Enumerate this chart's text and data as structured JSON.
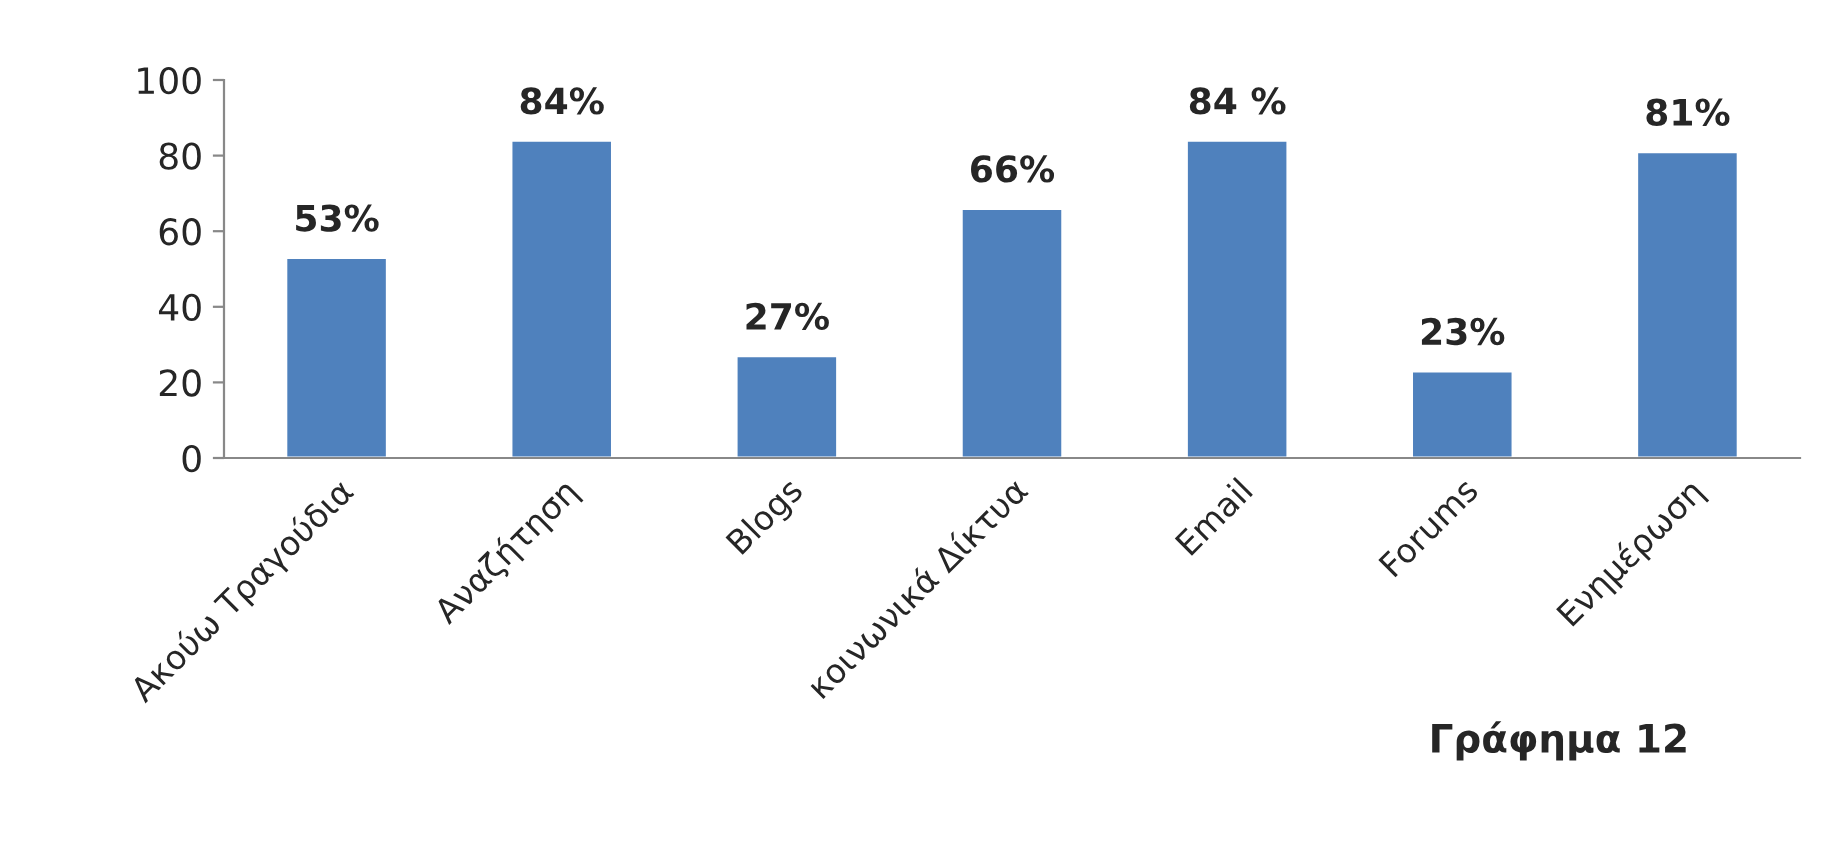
{
  "chart_data": {
    "type": "bar",
    "categories": [
      "Ακούω Τραγούδια",
      "Αναζήτηση",
      "Blogs",
      "κοινωνικά Δίκτυα",
      "Email",
      "Forums",
      "Ενημέρωση"
    ],
    "values": [
      53,
      84,
      27,
      66,
      84,
      23,
      81
    ],
    "value_labels": [
      "53%",
      "84%",
      "27%",
      "66%",
      "84 %",
      "23%",
      "81%"
    ],
    "color": "#4f81bd",
    "ylim": [
      0,
      100
    ],
    "yticks": [
      0,
      20,
      40,
      60,
      80,
      100
    ],
    "annotations": [
      "Γράφημα 12"
    ],
    "grid": false,
    "legend": false
  }
}
